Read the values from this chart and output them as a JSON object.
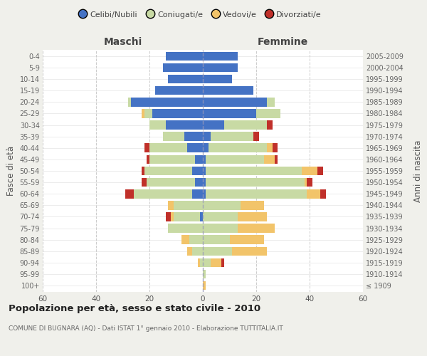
{
  "age_groups": [
    "100+",
    "95-99",
    "90-94",
    "85-89",
    "80-84",
    "75-79",
    "70-74",
    "65-69",
    "60-64",
    "55-59",
    "50-54",
    "45-49",
    "40-44",
    "35-39",
    "30-34",
    "25-29",
    "20-24",
    "15-19",
    "10-14",
    "5-9",
    "0-4"
  ],
  "birth_years": [
    "≤ 1909",
    "1910-1914",
    "1915-1919",
    "1920-1924",
    "1925-1929",
    "1930-1934",
    "1935-1939",
    "1940-1944",
    "1945-1949",
    "1950-1954",
    "1955-1959",
    "1960-1964",
    "1965-1969",
    "1970-1974",
    "1975-1979",
    "1980-1984",
    "1985-1989",
    "1990-1994",
    "1995-1999",
    "2000-2004",
    "2005-2009"
  ],
  "male": {
    "celibi": [
      0,
      0,
      0,
      0,
      0,
      0,
      1,
      0,
      4,
      3,
      4,
      3,
      6,
      7,
      14,
      19,
      27,
      18,
      13,
      15,
      14
    ],
    "coniugati": [
      0,
      0,
      1,
      4,
      5,
      13,
      10,
      11,
      22,
      18,
      18,
      17,
      14,
      8,
      6,
      3,
      1,
      0,
      0,
      0,
      0
    ],
    "vedovi": [
      0,
      0,
      1,
      2,
      3,
      0,
      1,
      2,
      0,
      0,
      0,
      0,
      0,
      0,
      0,
      1,
      0,
      0,
      0,
      0,
      0
    ],
    "divorziati": [
      0,
      0,
      0,
      0,
      0,
      0,
      2,
      0,
      3,
      2,
      1,
      1,
      2,
      0,
      0,
      0,
      0,
      0,
      0,
      0,
      0
    ]
  },
  "female": {
    "nubili": [
      0,
      0,
      0,
      0,
      0,
      0,
      0,
      0,
      1,
      1,
      1,
      1,
      2,
      3,
      8,
      20,
      24,
      19,
      11,
      13,
      13
    ],
    "coniugate": [
      0,
      1,
      3,
      11,
      10,
      13,
      13,
      14,
      38,
      37,
      36,
      22,
      22,
      16,
      16,
      9,
      3,
      0,
      0,
      0,
      0
    ],
    "vedove": [
      1,
      0,
      4,
      13,
      13,
      14,
      11,
      9,
      5,
      1,
      6,
      4,
      2,
      0,
      0,
      0,
      0,
      0,
      0,
      0,
      0
    ],
    "divorziate": [
      0,
      0,
      1,
      0,
      0,
      0,
      0,
      0,
      2,
      2,
      2,
      1,
      2,
      2,
      2,
      0,
      0,
      0,
      0,
      0,
      0
    ]
  },
  "colors": {
    "celibi": "#4472c4",
    "coniugati": "#c8daa4",
    "vedovi": "#f2c46a",
    "divorziati": "#c0302a"
  },
  "xlim": 60,
  "title": "Popolazione per età, sesso e stato civile - 2010",
  "subtitle": "COMUNE DI BUGNARA (AQ) - Dati ISTAT 1° gennaio 2010 - Elaborazione TUTTITALIA.IT",
  "ylabel_left": "Fasce di età",
  "ylabel_right": "Anni di nascita",
  "legend_labels": [
    "Celibi/Nubili",
    "Coniugati/e",
    "Vedovi/e",
    "Divorziati/e"
  ],
  "maschi_label": "Maschi",
  "femmine_label": "Femmine",
  "bg_color": "#f0f0eb",
  "plot_bg": "#ffffff"
}
